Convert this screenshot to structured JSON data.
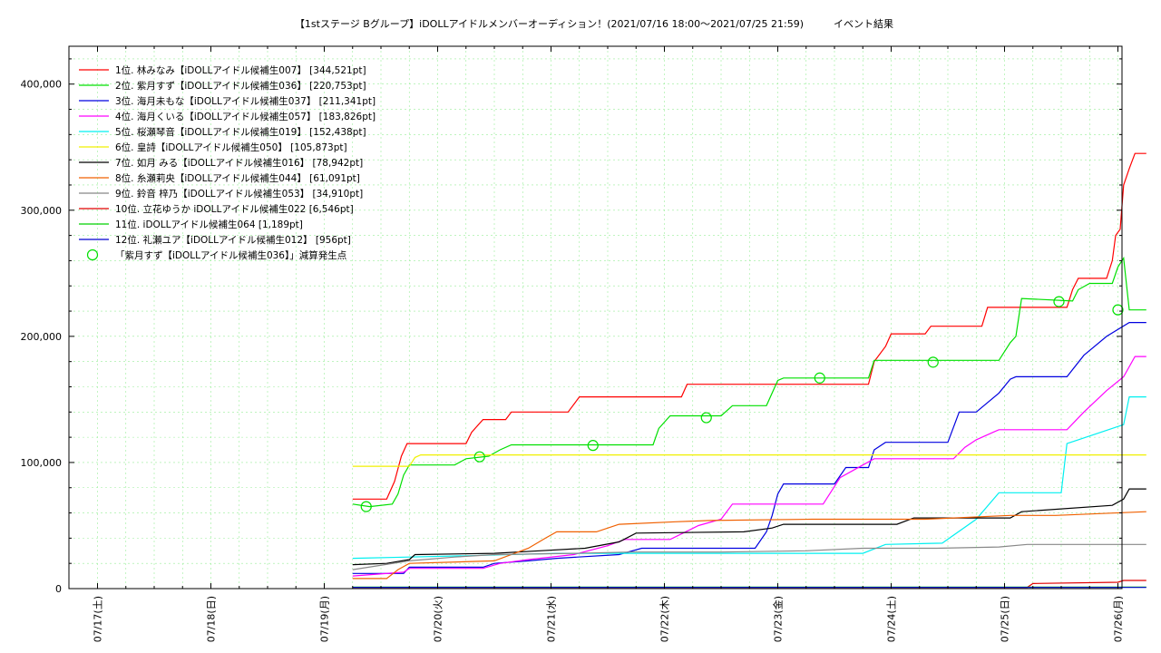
{
  "chart_data": {
    "type": "line",
    "title": "【1stステージ Bグループ】iDOLLアイドルメンバーオーディション！(2021/07/16 18:00～2021/07/25 21:59)　　　イベント結果",
    "xlabel": "",
    "ylabel": "",
    "ylim": [
      0,
      430000
    ],
    "x_range": [
      "2021/07/16 18:00",
      "2021/07/26 01:00"
    ],
    "x_tick_labels": [
      "07/17(土)",
      "07/18(日)",
      "07/19(月)",
      "07/20(火)",
      "07/21(水)",
      "07/22(木)",
      "07/23(金)",
      "07/24(土)",
      "07/25(日)",
      "07/26(月)"
    ],
    "y_ticks": [
      0,
      100000,
      200000,
      300000,
      400000
    ],
    "y_tick_labels": [
      "0",
      "100,000",
      "200,000",
      "300,000",
      "400,000"
    ],
    "grid": true,
    "legend_position": "top-left",
    "series": [
      {
        "name": "1位. 林みなみ【iDOLLアイドル候補生007】 [344,521pt]",
        "color": "#ff0000",
        "points": [
          [
            2.25,
            71000
          ],
          [
            2.55,
            71000
          ],
          [
            2.62,
            85000
          ],
          [
            2.68,
            105000
          ],
          [
            2.73,
            115000
          ],
          [
            3.25,
            115000
          ],
          [
            3.3,
            124000
          ],
          [
            3.4,
            134000
          ],
          [
            3.6,
            134000
          ],
          [
            3.65,
            140000
          ],
          [
            4.15,
            140000
          ],
          [
            4.25,
            152000
          ],
          [
            5.15,
            152000
          ],
          [
            5.2,
            162000
          ],
          [
            6.8,
            162000
          ],
          [
            6.85,
            180000
          ],
          [
            6.95,
            192000
          ],
          [
            7.0,
            202000
          ],
          [
            7.3,
            202000
          ],
          [
            7.35,
            208000
          ],
          [
            7.8,
            208000
          ],
          [
            7.85,
            223000
          ],
          [
            8.55,
            223000
          ],
          [
            8.6,
            237000
          ],
          [
            8.65,
            246000
          ],
          [
            8.9,
            246000
          ],
          [
            8.95,
            260000
          ],
          [
            8.98,
            280000
          ],
          [
            9.02,
            285000
          ],
          [
            9.05,
            320000
          ],
          [
            9.1,
            333000
          ],
          [
            9.15,
            345000
          ],
          [
            9.25,
            345000
          ]
        ]
      },
      {
        "name": "2位. 紫月すず【iDOLLアイドル候補生036】 [220,753pt]",
        "color": "#00e000",
        "points": [
          [
            2.25,
            67000
          ],
          [
            2.4,
            65000
          ],
          [
            2.6,
            67000
          ],
          [
            2.65,
            75000
          ],
          [
            2.7,
            90000
          ],
          [
            2.75,
            98000
          ],
          [
            3.15,
            98000
          ],
          [
            3.25,
            103000
          ],
          [
            3.45,
            105000
          ],
          [
            3.55,
            110000
          ],
          [
            3.65,
            114000
          ],
          [
            4.9,
            114000
          ],
          [
            4.95,
            127000
          ],
          [
            5.05,
            137000
          ],
          [
            5.5,
            137000
          ],
          [
            5.6,
            145000
          ],
          [
            5.9,
            145000
          ],
          [
            6.0,
            165000
          ],
          [
            6.05,
            167000
          ],
          [
            6.8,
            167000
          ],
          [
            6.85,
            181000
          ],
          [
            7.95,
            181000
          ],
          [
            8.05,
            195000
          ],
          [
            8.1,
            200000
          ],
          [
            8.15,
            230000
          ],
          [
            8.6,
            228000
          ],
          [
            8.65,
            237000
          ],
          [
            8.75,
            242000
          ],
          [
            8.95,
            242000
          ],
          [
            9.0,
            255000
          ],
          [
            9.05,
            262000
          ],
          [
            9.1,
            221000
          ],
          [
            9.25,
            221000
          ]
        ],
        "markers": [
          [
            2.37,
            65000
          ],
          [
            3.37,
            104500
          ],
          [
            4.37,
            113500
          ],
          [
            5.37,
            135500
          ],
          [
            6.37,
            167000
          ],
          [
            7.37,
            179500
          ],
          [
            8.48,
            227500
          ],
          [
            9.0,
            221000
          ]
        ]
      },
      {
        "name": "3位. 海月未もな【iDOLLアイドル候補生037】 [211,341pt]",
        "color": "#0000e0",
        "points": [
          [
            2.25,
            12000
          ],
          [
            2.7,
            12000
          ],
          [
            2.75,
            17000
          ],
          [
            3.4,
            17000
          ],
          [
            3.5,
            20000
          ],
          [
            3.8,
            22000
          ],
          [
            4.05,
            24000
          ],
          [
            4.6,
            27000
          ],
          [
            4.8,
            32000
          ],
          [
            5.8,
            32000
          ],
          [
            5.9,
            45000
          ],
          [
            5.95,
            58000
          ],
          [
            6.0,
            75000
          ],
          [
            6.05,
            83000
          ],
          [
            6.5,
            83000
          ],
          [
            6.6,
            96000
          ],
          [
            6.8,
            96000
          ],
          [
            6.85,
            110000
          ],
          [
            6.95,
            116000
          ],
          [
            7.5,
            116000
          ],
          [
            7.6,
            140000
          ],
          [
            7.75,
            140000
          ],
          [
            7.95,
            155000
          ],
          [
            8.05,
            166000
          ],
          [
            8.1,
            168000
          ],
          [
            8.55,
            168000
          ],
          [
            8.7,
            185000
          ],
          [
            8.9,
            200000
          ],
          [
            9.1,
            211000
          ],
          [
            9.25,
            211000
          ]
        ]
      },
      {
        "name": "4位. 海月くいる【iDOLLアイドル候補生057】 [183,826pt]",
        "color": "#ff00ff",
        "points": [
          [
            2.25,
            10000
          ],
          [
            2.7,
            13000
          ],
          [
            2.75,
            16000
          ],
          [
            3.4,
            16000
          ],
          [
            3.55,
            20000
          ],
          [
            3.8,
            23000
          ],
          [
            4.2,
            27000
          ],
          [
            4.5,
            34000
          ],
          [
            4.65,
            39000
          ],
          [
            5.05,
            39000
          ],
          [
            5.3,
            50000
          ],
          [
            5.5,
            55000
          ],
          [
            5.6,
            67000
          ],
          [
            6.4,
            67000
          ],
          [
            6.55,
            88000
          ],
          [
            6.75,
            98000
          ],
          [
            6.85,
            103000
          ],
          [
            7.55,
            103000
          ],
          [
            7.65,
            112000
          ],
          [
            7.75,
            118000
          ],
          [
            7.9,
            124000
          ],
          [
            7.95,
            126000
          ],
          [
            8.55,
            126000
          ],
          [
            8.7,
            140000
          ],
          [
            8.9,
            157000
          ],
          [
            9.05,
            168000
          ],
          [
            9.15,
            184000
          ],
          [
            9.25,
            184000
          ]
        ]
      },
      {
        "name": "5位. 桜瀬琴音【iDOLLアイドル候補生019】 [152,438pt]",
        "color": "#00f0f0",
        "points": [
          [
            2.25,
            24000
          ],
          [
            2.75,
            25000
          ],
          [
            3.25,
            26000
          ],
          [
            4.05,
            28000
          ],
          [
            4.55,
            28000
          ],
          [
            5.5,
            28000
          ],
          [
            6.75,
            28000
          ],
          [
            6.95,
            35000
          ],
          [
            7.45,
            36000
          ],
          [
            7.75,
            55000
          ],
          [
            7.95,
            76000
          ],
          [
            8.5,
            76000
          ],
          [
            8.55,
            115000
          ],
          [
            8.65,
            118000
          ],
          [
            9.05,
            130000
          ],
          [
            9.1,
            152000
          ],
          [
            9.25,
            152000
          ]
        ]
      },
      {
        "name": "6位. 皇詩【iDOLLアイドル候補生050】 [105,873pt]",
        "color": "#f0f000",
        "points": [
          [
            2.25,
            97000
          ],
          [
            2.75,
            97000
          ],
          [
            2.8,
            104000
          ],
          [
            2.85,
            106000
          ],
          [
            9.25,
            106000
          ]
        ]
      },
      {
        "name": "7位. 如月 みる【iDOLLアイドル候補生016】 [78,942pt]",
        "color": "#000000",
        "points": [
          [
            2.25,
            19000
          ],
          [
            2.55,
            20000
          ],
          [
            2.75,
            23000
          ],
          [
            2.8,
            27000
          ],
          [
            3.5,
            28000
          ],
          [
            3.9,
            30000
          ],
          [
            4.3,
            32000
          ],
          [
            4.6,
            37000
          ],
          [
            4.75,
            44000
          ],
          [
            5.7,
            45000
          ],
          [
            5.95,
            48000
          ],
          [
            6.05,
            51000
          ],
          [
            7.05,
            51000
          ],
          [
            7.2,
            56000
          ],
          [
            8.05,
            56000
          ],
          [
            8.15,
            61000
          ],
          [
            8.95,
            66000
          ],
          [
            9.05,
            71000
          ],
          [
            9.1,
            79000
          ],
          [
            9.25,
            79000
          ]
        ]
      },
      {
        "name": "8位. 糸瀬莉央【iDOLLアイドル候補生044】 [61,091pt]",
        "color": "#f06000",
        "points": [
          [
            2.25,
            8000
          ],
          [
            2.55,
            8000
          ],
          [
            2.65,
            15000
          ],
          [
            2.75,
            20000
          ],
          [
            3.5,
            22000
          ],
          [
            3.8,
            32000
          ],
          [
            3.95,
            40000
          ],
          [
            4.05,
            45000
          ],
          [
            4.4,
            45000
          ],
          [
            4.6,
            51000
          ],
          [
            5.1,
            53000
          ],
          [
            5.4,
            54000
          ],
          [
            6.3,
            55000
          ],
          [
            6.85,
            55000
          ],
          [
            7.3,
            55000
          ],
          [
            8.05,
            58000
          ],
          [
            8.45,
            58000
          ],
          [
            9.25,
            61000
          ]
        ]
      },
      {
        "name": "9位. 鈴音 梓乃【iDOLLアイドル候補生053】 [34,910pt]",
        "color": "#888888",
        "points": [
          [
            2.25,
            15000
          ],
          [
            2.75,
            22000
          ],
          [
            3.15,
            25000
          ],
          [
            3.5,
            27000
          ],
          [
            4.2,
            28000
          ],
          [
            4.7,
            29000
          ],
          [
            5.5,
            29000
          ],
          [
            6.25,
            30000
          ],
          [
            6.75,
            32000
          ],
          [
            7.4,
            32000
          ],
          [
            7.95,
            33000
          ],
          [
            8.2,
            35000
          ],
          [
            9.25,
            35000
          ]
        ]
      },
      {
        "name": "10位. 立花ゆうか iDOLLアイドル候補生022 [6,546pt]",
        "color": "#e00000",
        "points": [
          [
            2.25,
            1000
          ],
          [
            6.8,
            1000
          ],
          [
            8.2,
            1000
          ],
          [
            8.25,
            4000
          ],
          [
            9.0,
            5000
          ],
          [
            9.05,
            6500
          ],
          [
            9.25,
            6500
          ]
        ]
      },
      {
        "name": "11位. iDOLLアイドル候補生064 [1,189pt]",
        "color": "#00d000",
        "points": [
          [
            2.25,
            1200
          ],
          [
            9.25,
            1200
          ]
        ]
      },
      {
        "name": "12位. 礼瀬ユア【iDOLLアイドル候補生012】 [956pt]",
        "color": "#0000d0",
        "points": [
          [
            2.25,
            950
          ],
          [
            9.25,
            950
          ]
        ]
      }
    ],
    "marker_legend": {
      "label": "「紫月すず【iDOLLアイドル候補生036】」減算発生点",
      "color": "#00e000"
    }
  }
}
